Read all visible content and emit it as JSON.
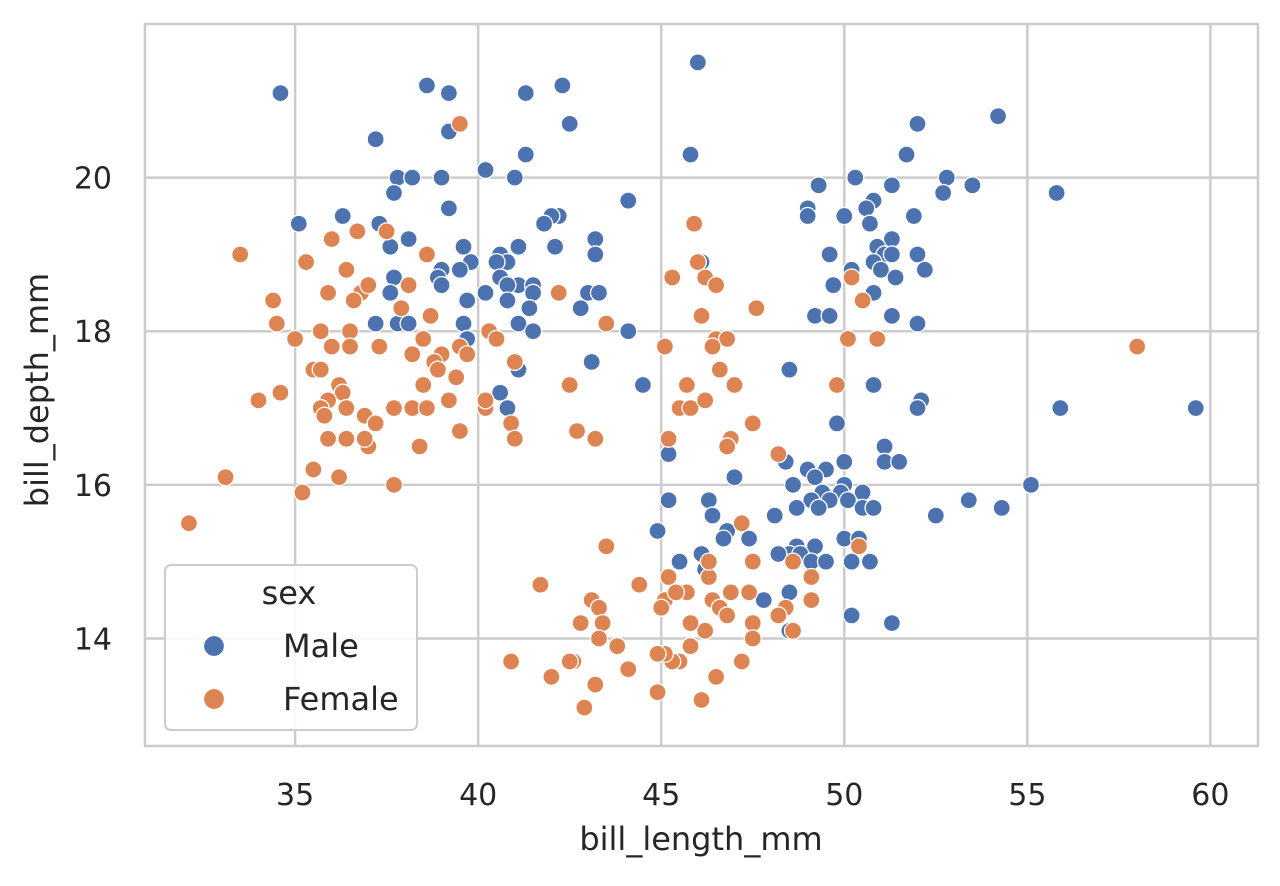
{
  "chart_data": {
    "type": "scatter",
    "title": "",
    "xlabel": "bill_length_mm",
    "ylabel": "bill_depth_mm",
    "xlim": [
      30.9,
      61.3
    ],
    "ylim": [
      12.6,
      22.0
    ],
    "xticks": [
      35,
      40,
      45,
      50,
      55,
      60
    ],
    "yticks": [
      14,
      16,
      18,
      20
    ],
    "grid": true,
    "legend": {
      "title": "sex",
      "placement": "bottom-left",
      "entries": [
        "Male",
        "Female"
      ]
    },
    "colors": {
      "Male": "#4c72b0",
      "Female": "#dd8452"
    },
    "series": [
      {
        "name": "Male",
        "points": [
          [
            34.6,
            21.1
          ],
          [
            38.6,
            21.2
          ],
          [
            39.2,
            21.1
          ],
          [
            41.3,
            21.1
          ],
          [
            42.3,
            21.2
          ],
          [
            46.0,
            21.5
          ],
          [
            39.2,
            20.6
          ],
          [
            42.5,
            20.7
          ],
          [
            37.2,
            20.5
          ],
          [
            45.8,
            20.3
          ],
          [
            41.3,
            20.3
          ],
          [
            54.2,
            20.8
          ],
          [
            52.0,
            20.7
          ],
          [
            51.7,
            20.3
          ],
          [
            40.2,
            20.1
          ],
          [
            41.0,
            20.0
          ],
          [
            37.8,
            20.0
          ],
          [
            38.2,
            20.0
          ],
          [
            39.0,
            20.0
          ],
          [
            50.3,
            20.0
          ],
          [
            52.8,
            20.0
          ],
          [
            49.3,
            19.9
          ],
          [
            51.3,
            19.9
          ],
          [
            53.5,
            19.9
          ],
          [
            37.7,
            19.8
          ],
          [
            55.8,
            19.8
          ],
          [
            52.7,
            19.8
          ],
          [
            44.1,
            19.7
          ],
          [
            50.8,
            19.7
          ],
          [
            50.6,
            19.6
          ],
          [
            49.0,
            19.6
          ],
          [
            39.2,
            19.6
          ],
          [
            36.3,
            19.5
          ],
          [
            42.2,
            19.5
          ],
          [
            50.0,
            19.5
          ],
          [
            51.9,
            19.5
          ],
          [
            42.0,
            19.5
          ],
          [
            35.1,
            19.4
          ],
          [
            37.3,
            19.4
          ],
          [
            41.8,
            19.4
          ],
          [
            50.7,
            19.4
          ],
          [
            49.0,
            19.5
          ],
          [
            43.2,
            19.2
          ],
          [
            38.1,
            19.2
          ],
          [
            51.3,
            19.2
          ],
          [
            37.6,
            19.1
          ],
          [
            42.1,
            19.1
          ],
          [
            39.6,
            19.1
          ],
          [
            41.1,
            19.1
          ],
          [
            50.9,
            19.1
          ],
          [
            51.1,
            19.0
          ],
          [
            40.6,
            19.0
          ],
          [
            43.2,
            19.0
          ],
          [
            49.6,
            19.0
          ],
          [
            51.3,
            19.0
          ],
          [
            52.0,
            19.0
          ],
          [
            40.8,
            18.9
          ],
          [
            46.1,
            18.9
          ],
          [
            39.8,
            18.9
          ],
          [
            50.8,
            18.9
          ],
          [
            40.5,
            18.9
          ],
          [
            39.5,
            18.8
          ],
          [
            39.0,
            18.8
          ],
          [
            51.0,
            18.8
          ],
          [
            50.2,
            18.8
          ],
          [
            52.2,
            18.8
          ],
          [
            40.6,
            18.7
          ],
          [
            37.7,
            18.7
          ],
          [
            38.9,
            18.7
          ],
          [
            51.4,
            18.7
          ],
          [
            39.0,
            18.6
          ],
          [
            41.1,
            18.6
          ],
          [
            41.5,
            18.6
          ],
          [
            40.8,
            18.6
          ],
          [
            49.7,
            18.6
          ],
          [
            37.6,
            18.5
          ],
          [
            40.2,
            18.5
          ],
          [
            41.5,
            18.5
          ],
          [
            43.0,
            18.5
          ],
          [
            43.3,
            18.5
          ],
          [
            50.8,
            18.5
          ],
          [
            39.7,
            18.4
          ],
          [
            40.8,
            18.4
          ],
          [
            41.4,
            18.3
          ],
          [
            42.8,
            18.3
          ],
          [
            49.2,
            18.2
          ],
          [
            49.6,
            18.2
          ],
          [
            51.3,
            18.2
          ],
          [
            41.1,
            18.1
          ],
          [
            37.2,
            18.1
          ],
          [
            37.8,
            18.1
          ],
          [
            38.1,
            18.1
          ],
          [
            39.6,
            18.1
          ],
          [
            52.0,
            18.1
          ],
          [
            44.1,
            18.0
          ],
          [
            41.5,
            18.0
          ],
          [
            39.7,
            17.9
          ],
          [
            41.1,
            17.5
          ],
          [
            48.5,
            17.5
          ],
          [
            43.1,
            17.6
          ],
          [
            44.5,
            17.3
          ],
          [
            50.8,
            17.3
          ],
          [
            40.6,
            17.2
          ],
          [
            52.1,
            17.1
          ],
          [
            52.0,
            17.0
          ],
          [
            40.8,
            17.0
          ],
          [
            55.9,
            17.0
          ],
          [
            59.6,
            17.0
          ],
          [
            49.8,
            16.8
          ],
          [
            51.1,
            16.5
          ],
          [
            45.2,
            16.4
          ],
          [
            48.4,
            16.3
          ],
          [
            51.1,
            16.3
          ],
          [
            51.5,
            16.3
          ],
          [
            50.0,
            16.3
          ],
          [
            49.0,
            16.2
          ],
          [
            49.5,
            16.2
          ],
          [
            47.0,
            16.1
          ],
          [
            49.2,
            16.1
          ],
          [
            50.0,
            16.0
          ],
          [
            48.6,
            16.0
          ],
          [
            55.1,
            16.0
          ],
          [
            49.4,
            15.9
          ],
          [
            49.9,
            15.9
          ],
          [
            50.5,
            15.9
          ],
          [
            45.2,
            15.8
          ],
          [
            46.3,
            15.8
          ],
          [
            53.4,
            15.8
          ],
          [
            49.1,
            15.8
          ],
          [
            49.6,
            15.8
          ],
          [
            50.1,
            15.8
          ],
          [
            50.5,
            15.7
          ],
          [
            50.8,
            15.7
          ],
          [
            54.3,
            15.7
          ],
          [
            49.3,
            15.7
          ],
          [
            48.7,
            15.7
          ],
          [
            46.4,
            15.6
          ],
          [
            52.5,
            15.6
          ],
          [
            48.1,
            15.6
          ],
          [
            44.9,
            15.4
          ],
          [
            46.8,
            15.4
          ],
          [
            47.4,
            15.3
          ],
          [
            46.7,
            15.3
          ],
          [
            50.0,
            15.3
          ],
          [
            48.7,
            15.2
          ],
          [
            49.2,
            15.2
          ],
          [
            50.4,
            15.3
          ],
          [
            46.1,
            15.1
          ],
          [
            48.5,
            15.1
          ],
          [
            48.2,
            15.1
          ],
          [
            48.8,
            15.1
          ],
          [
            45.5,
            15.0
          ],
          [
            46.2,
            14.9
          ],
          [
            49.1,
            15.0
          ],
          [
            49.5,
            15.0
          ],
          [
            50.2,
            15.0
          ],
          [
            50.7,
            15.0
          ],
          [
            47.8,
            14.5
          ],
          [
            48.5,
            14.6
          ],
          [
            50.2,
            14.3
          ],
          [
            51.3,
            14.2
          ],
          [
            48.5,
            14.1
          ]
        ]
      },
      {
        "name": "Female",
        "points": [
          [
            39.5,
            20.7
          ],
          [
            33.5,
            19.0
          ],
          [
            35.3,
            18.9
          ],
          [
            36.0,
            19.2
          ],
          [
            36.7,
            19.3
          ],
          [
            37.5,
            19.3
          ],
          [
            36.4,
            18.8
          ],
          [
            38.6,
            19.0
          ],
          [
            34.4,
            18.4
          ],
          [
            34.5,
            18.1
          ],
          [
            35.9,
            18.5
          ],
          [
            36.8,
            18.5
          ],
          [
            37.0,
            18.6
          ],
          [
            38.1,
            18.6
          ],
          [
            36.6,
            18.4
          ],
          [
            37.9,
            18.3
          ],
          [
            38.7,
            18.2
          ],
          [
            35.0,
            17.9
          ],
          [
            35.7,
            18.0
          ],
          [
            36.5,
            18.0
          ],
          [
            38.5,
            17.9
          ],
          [
            37.3,
            17.8
          ],
          [
            38.2,
            17.7
          ],
          [
            36.0,
            17.8
          ],
          [
            36.5,
            17.8
          ],
          [
            39.5,
            17.8
          ],
          [
            39.0,
            17.7
          ],
          [
            38.8,
            17.6
          ],
          [
            39.7,
            17.7
          ],
          [
            40.3,
            18.0
          ],
          [
            40.5,
            17.9
          ],
          [
            41.0,
            17.6
          ],
          [
            35.5,
            17.5
          ],
          [
            35.7,
            17.5
          ],
          [
            36.2,
            17.3
          ],
          [
            38.9,
            17.5
          ],
          [
            39.4,
            17.4
          ],
          [
            39.2,
            17.1
          ],
          [
            36.3,
            17.2
          ],
          [
            35.9,
            17.1
          ],
          [
            34.0,
            17.1
          ],
          [
            34.6,
            17.2
          ],
          [
            35.7,
            17.0
          ],
          [
            35.8,
            16.9
          ],
          [
            36.4,
            17.0
          ],
          [
            36.9,
            16.9
          ],
          [
            37.2,
            16.8
          ],
          [
            37.7,
            17.0
          ],
          [
            38.2,
            17.0
          ],
          [
            38.6,
            17.0
          ],
          [
            38.5,
            17.3
          ],
          [
            40.2,
            17.0
          ],
          [
            40.2,
            17.1
          ],
          [
            40.9,
            16.8
          ],
          [
            41.0,
            16.6
          ],
          [
            39.5,
            16.7
          ],
          [
            37.0,
            16.5
          ],
          [
            38.4,
            16.5
          ],
          [
            36.4,
            16.6
          ],
          [
            36.9,
            16.6
          ],
          [
            35.9,
            16.6
          ],
          [
            35.5,
            16.2
          ],
          [
            36.2,
            16.1
          ],
          [
            33.1,
            16.1
          ],
          [
            32.1,
            15.5
          ],
          [
            35.2,
            15.9
          ],
          [
            37.7,
            16.0
          ],
          [
            42.2,
            18.5
          ],
          [
            42.5,
            17.3
          ],
          [
            42.7,
            16.7
          ],
          [
            43.2,
            16.6
          ],
          [
            43.5,
            18.1
          ],
          [
            45.1,
            17.8
          ],
          [
            45.5,
            17.0
          ],
          [
            45.8,
            17.0
          ],
          [
            46.2,
            17.1
          ],
          [
            45.7,
            17.3
          ],
          [
            46.6,
            17.5
          ],
          [
            46.5,
            17.9
          ],
          [
            46.8,
            17.9
          ],
          [
            46.4,
            17.8
          ],
          [
            47.0,
            17.3
          ],
          [
            47.5,
            16.8
          ],
          [
            46.9,
            16.6
          ],
          [
            46.8,
            16.5
          ],
          [
            45.2,
            16.6
          ],
          [
            46.2,
            18.7
          ],
          [
            46.5,
            18.6
          ],
          [
            45.3,
            18.7
          ],
          [
            45.9,
            19.4
          ],
          [
            46.0,
            18.9
          ],
          [
            46.1,
            18.2
          ],
          [
            47.6,
            18.3
          ],
          [
            50.2,
            18.7
          ],
          [
            50.5,
            18.4
          ],
          [
            50.1,
            17.9
          ],
          [
            50.9,
            17.9
          ],
          [
            49.8,
            17.3
          ],
          [
            48.2,
            16.4
          ],
          [
            58.0,
            17.8
          ],
          [
            50.4,
            15.2
          ],
          [
            43.5,
            15.2
          ],
          [
            47.2,
            15.5
          ],
          [
            47.5,
            15.0
          ],
          [
            48.6,
            15.0
          ],
          [
            49.1,
            14.8
          ],
          [
            49.1,
            14.5
          ],
          [
            48.4,
            14.4
          ],
          [
            48.2,
            14.3
          ],
          [
            48.6,
            14.1
          ],
          [
            47.5,
            14.2
          ],
          [
            47.5,
            14.0
          ],
          [
            47.4,
            14.6
          ],
          [
            46.9,
            14.6
          ],
          [
            46.3,
            14.8
          ],
          [
            46.3,
            15.0
          ],
          [
            46.4,
            14.5
          ],
          [
            46.6,
            14.4
          ],
          [
            46.2,
            14.1
          ],
          [
            46.5,
            13.5
          ],
          [
            46.1,
            13.2
          ],
          [
            46.8,
            14.3
          ],
          [
            45.2,
            14.8
          ],
          [
            45.1,
            14.5
          ],
          [
            45.5,
            14.6
          ],
          [
            45.7,
            14.6
          ],
          [
            45.0,
            14.4
          ],
          [
            45.4,
            14.6
          ],
          [
            45.8,
            14.2
          ],
          [
            45.5,
            13.7
          ],
          [
            45.3,
            13.7
          ],
          [
            45.1,
            13.8
          ],
          [
            44.9,
            13.8
          ],
          [
            45.8,
            13.9
          ],
          [
            44.9,
            13.3
          ],
          [
            47.2,
            13.7
          ],
          [
            41.7,
            14.7
          ],
          [
            44.4,
            14.7
          ],
          [
            43.1,
            14.5
          ],
          [
            43.3,
            14.4
          ],
          [
            43.4,
            14.2
          ],
          [
            42.8,
            14.2
          ],
          [
            43.3,
            14.0
          ],
          [
            43.8,
            13.9
          ],
          [
            44.1,
            13.6
          ],
          [
            42.6,
            13.7
          ],
          [
            42.5,
            13.7
          ],
          [
            43.2,
            13.4
          ],
          [
            42.0,
            13.5
          ],
          [
            42.9,
            13.1
          ],
          [
            40.9,
            13.7
          ]
        ]
      }
    ]
  }
}
